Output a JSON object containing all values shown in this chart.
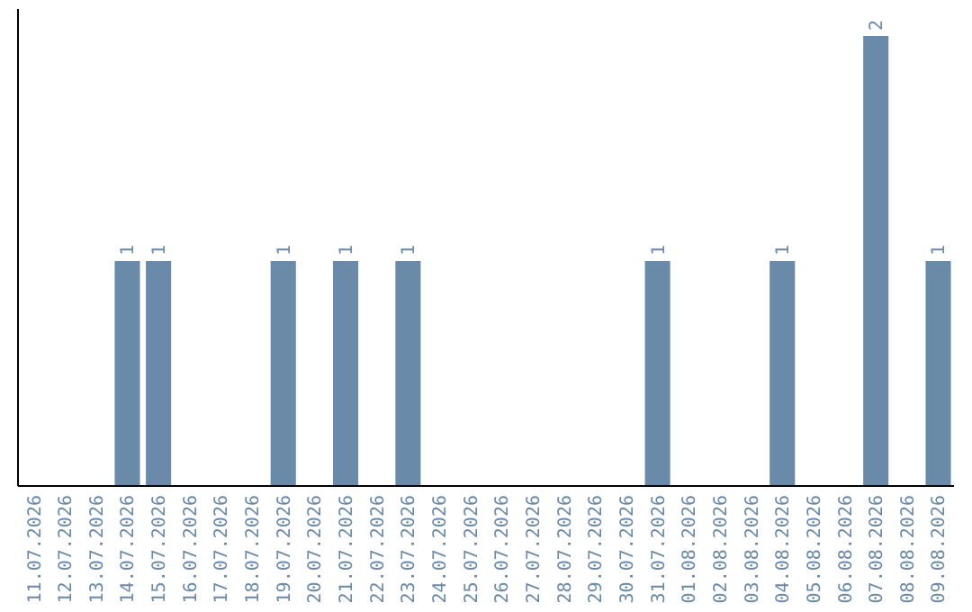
{
  "chart_data": {
    "type": "bar",
    "categories": [
      "11.07.2026",
      "12.07.2026",
      "13.07.2026",
      "14.07.2026",
      "15.07.2026",
      "16.07.2026",
      "17.07.2026",
      "18.07.2026",
      "19.07.2026",
      "20.07.2026",
      "21.07.2026",
      "22.07.2026",
      "23.07.2026",
      "24.07.2026",
      "25.07.2026",
      "26.07.2026",
      "27.07.2026",
      "28.07.2026",
      "29.07.2026",
      "30.07.2026",
      "31.07.2026",
      "01.08.2026",
      "02.08.2026",
      "03.08.2026",
      "04.08.2026",
      "05.08.2026",
      "06.08.2026",
      "07.08.2026",
      "08.08.2026",
      "09.08.2026"
    ],
    "values": [
      0,
      0,
      0,
      1,
      1,
      0,
      0,
      0,
      1,
      0,
      1,
      0,
      1,
      0,
      0,
      0,
      0,
      0,
      0,
      0,
      1,
      0,
      0,
      0,
      1,
      0,
      0,
      2,
      0,
      1
    ],
    "value_labels": [
      null,
      null,
      null,
      "1",
      "1",
      null,
      null,
      null,
      "1",
      null,
      "1",
      null,
      "1",
      null,
      null,
      null,
      null,
      null,
      null,
      null,
      "1",
      null,
      null,
      null,
      "1",
      null,
      null,
      "2",
      null,
      "1"
    ],
    "color": "#6a8aaa",
    "tick_labels": "x"
  }
}
